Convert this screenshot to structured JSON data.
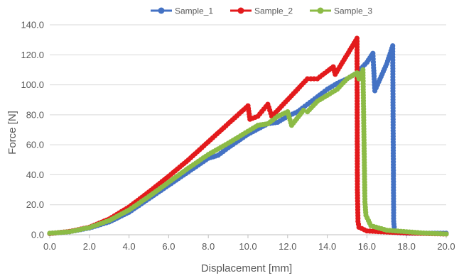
{
  "chart_data": {
    "type": "line",
    "title": "",
    "xlabel": "Displacement [mm]",
    "ylabel": "Force [N]",
    "xlim": [
      0,
      20
    ],
    "ylim": [
      0,
      140
    ],
    "x_ticks": [
      "0.0",
      "2.0",
      "4.0",
      "6.0",
      "8.0",
      "10.0",
      "12.0",
      "14.0",
      "16.0",
      "18.0",
      "20.0"
    ],
    "y_ticks": [
      "0.0",
      "20.0",
      "40.0",
      "60.0",
      "80.0",
      "100.0",
      "120.0",
      "140.0"
    ],
    "grid": "horizontal",
    "legend_position": "top",
    "series": [
      {
        "name": "Sample_1",
        "color": "#4472C4",
        "points": [
          [
            0.0,
            0.8
          ],
          [
            1.0,
            2.0
          ],
          [
            2.0,
            4.5
          ],
          [
            3.0,
            8.5
          ],
          [
            4.0,
            15.0
          ],
          [
            5.0,
            24.0
          ],
          [
            6.0,
            33.0
          ],
          [
            7.0,
            42.0
          ],
          [
            8.0,
            51.0
          ],
          [
            8.5,
            53.0
          ],
          [
            9.0,
            58.0
          ],
          [
            10.0,
            67.0
          ],
          [
            11.0,
            74.0
          ],
          [
            11.5,
            75.0
          ],
          [
            12.0,
            79.0
          ],
          [
            12.5,
            82.0
          ],
          [
            13.0,
            87.0
          ],
          [
            13.5,
            92.0
          ],
          [
            14.0,
            97.0
          ],
          [
            14.5,
            101.0
          ],
          [
            15.0,
            104.0
          ],
          [
            15.5,
            108.0
          ],
          [
            16.0,
            115.0
          ],
          [
            16.3,
            121.0
          ],
          [
            16.4,
            96.0
          ],
          [
            16.6,
            102.0
          ],
          [
            17.0,
            114.0
          ],
          [
            17.3,
            126.0
          ],
          [
            17.35,
            9.0
          ],
          [
            17.4,
            1.5
          ],
          [
            18.0,
            1.0
          ],
          [
            19.0,
            1.0
          ],
          [
            20.0,
            1.0
          ]
        ]
      },
      {
        "name": "Sample_2",
        "color": "#E31A1C",
        "points": [
          [
            0.0,
            0.8
          ],
          [
            1.0,
            2.2
          ],
          [
            2.0,
            5.0
          ],
          [
            3.0,
            10.5
          ],
          [
            4.0,
            18.5
          ],
          [
            5.0,
            28.5
          ],
          [
            6.0,
            39.0
          ],
          [
            7.0,
            50.0
          ],
          [
            8.0,
            62.0
          ],
          [
            9.0,
            74.0
          ],
          [
            10.0,
            86.0
          ],
          [
            10.1,
            77.0
          ],
          [
            10.5,
            79.0
          ],
          [
            11.0,
            87.0
          ],
          [
            11.2,
            79.0
          ],
          [
            11.5,
            83.0
          ],
          [
            12.0,
            90.0
          ],
          [
            12.5,
            97.0
          ],
          [
            13.0,
            104.0
          ],
          [
            13.5,
            104.0
          ],
          [
            14.0,
            109.0
          ],
          [
            14.3,
            112.0
          ],
          [
            14.4,
            107.0
          ],
          [
            15.0,
            120.0
          ],
          [
            15.5,
            131.0
          ],
          [
            15.52,
            30.0
          ],
          [
            15.55,
            9.0
          ],
          [
            15.6,
            5.0
          ],
          [
            16.0,
            2.5
          ],
          [
            17.0,
            1.8
          ],
          [
            18.0,
            1.2
          ],
          [
            19.0,
            0.8
          ],
          [
            20.0,
            0.5
          ]
        ]
      },
      {
        "name": "Sample_3",
        "color": "#8CBB46",
        "points": [
          [
            0.0,
            1.0
          ],
          [
            1.0,
            2.0
          ],
          [
            2.0,
            4.8
          ],
          [
            3.0,
            9.5
          ],
          [
            4.0,
            16.5
          ],
          [
            5.0,
            25.5
          ],
          [
            6.0,
            35.0
          ],
          [
            7.0,
            44.5
          ],
          [
            8.0,
            53.5
          ],
          [
            9.0,
            61.0
          ],
          [
            10.0,
            69.0
          ],
          [
            10.5,
            73.0
          ],
          [
            11.0,
            74.0
          ],
          [
            11.5,
            79.0
          ],
          [
            12.0,
            82.0
          ],
          [
            12.2,
            73.0
          ],
          [
            12.8,
            83.0
          ],
          [
            13.0,
            82.0
          ],
          [
            13.5,
            89.0
          ],
          [
            14.0,
            93.0
          ],
          [
            14.5,
            97.0
          ],
          [
            15.0,
            104.0
          ],
          [
            15.5,
            108.0
          ],
          [
            15.6,
            104.0
          ],
          [
            15.8,
            110.0
          ],
          [
            15.9,
            22.0
          ],
          [
            15.95,
            13.0
          ],
          [
            16.2,
            6.0
          ],
          [
            17.0,
            3.0
          ],
          [
            18.0,
            2.0
          ],
          [
            19.0,
            1.0
          ],
          [
            20.0,
            0.5
          ]
        ]
      }
    ]
  }
}
